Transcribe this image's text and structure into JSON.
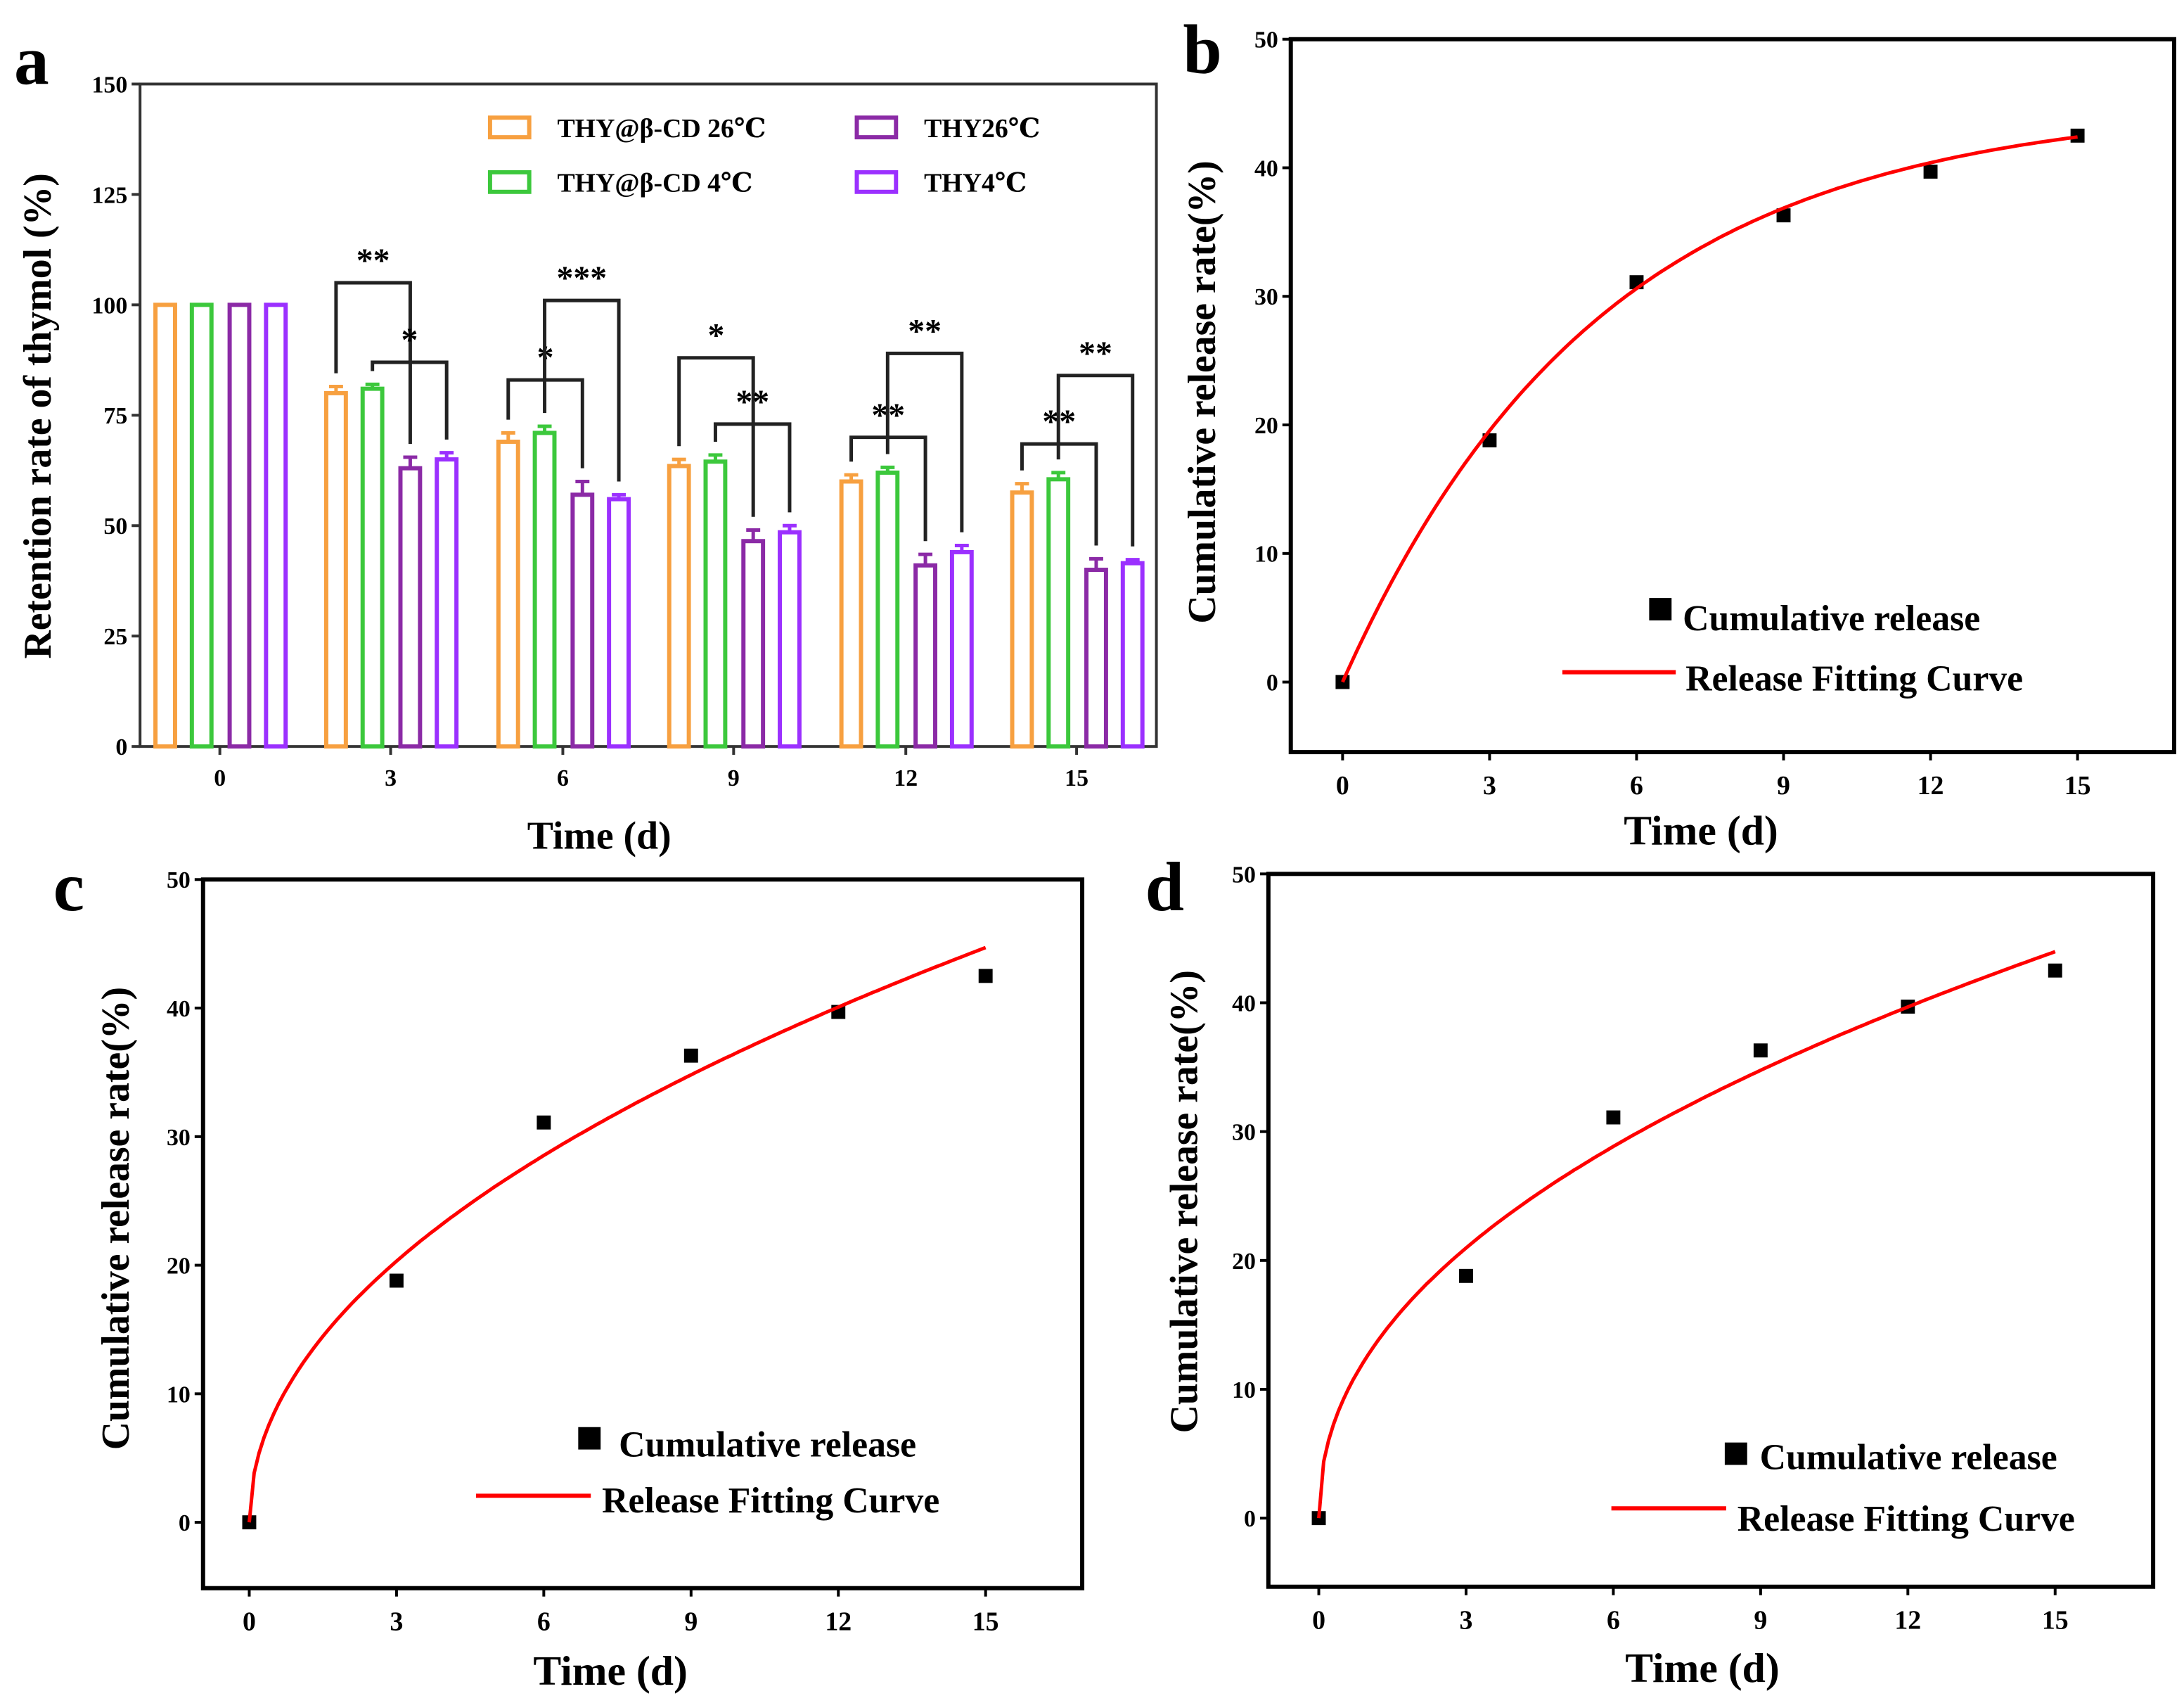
{
  "chart_data": [
    {
      "panel": "a",
      "type": "bar",
      "title": "",
      "xlabel": "Time (d)",
      "ylabel": "Retention rate of thymol (%)",
      "ylim": [
        0,
        150
      ],
      "yticks": [
        "0",
        "25",
        "50",
        "75",
        "100",
        "125",
        "150"
      ],
      "categories": [
        "0",
        "3",
        "6",
        "9",
        "12",
        "15"
      ],
      "legend_placement": "top-right",
      "series": [
        {
          "name": "THY@β-CD 26℃",
          "color": "#f7a040",
          "values": [
            100,
            80,
            69,
            63.5,
            60,
            57.5
          ],
          "errors": [
            0,
            1.5,
            2,
            1.5,
            1.5,
            2
          ]
        },
        {
          "name": "THY@β-CD 4℃",
          "color": "#3cc83c",
          "values": [
            100,
            81,
            71,
            64.5,
            62,
            60.5
          ],
          "errors": [
            0,
            1,
            1.5,
            1.5,
            1.2,
            1.5
          ]
        },
        {
          "name": "THY26℃",
          "color": "#8b2aa6",
          "values": [
            100,
            63,
            57,
            46.5,
            41,
            40
          ],
          "errors": [
            0,
            2.5,
            3,
            2.5,
            2.5,
            2.5
          ]
        },
        {
          "name": "THY4℃",
          "color": "#9b30ff",
          "values": [
            100,
            65,
            56,
            48.5,
            44,
            41.5
          ],
          "errors": [
            0,
            1.5,
            1,
            1.5,
            1.5,
            0.8
          ]
        }
      ],
      "significance": [
        {
          "category": "3",
          "from": 0,
          "to": 2,
          "height": 105,
          "label": "**"
        },
        {
          "category": "3",
          "from": 1,
          "to": 3,
          "height": 87,
          "label": "*"
        },
        {
          "category": "6",
          "from": 0,
          "to": 2,
          "height": 83,
          "label": "*"
        },
        {
          "category": "6",
          "from": 1,
          "to": 3,
          "height": 101,
          "label": "***"
        },
        {
          "category": "9",
          "from": 0,
          "to": 2,
          "height": 88,
          "label": "*"
        },
        {
          "category": "9",
          "from": 1,
          "to": 3,
          "height": 73,
          "label": "**"
        },
        {
          "category": "12",
          "from": 0,
          "to": 2,
          "height": 70,
          "label": "**"
        },
        {
          "category": "12",
          "from": 1,
          "to": 3,
          "height": 89,
          "label": "**"
        },
        {
          "category": "15",
          "from": 0,
          "to": 2,
          "height": 68.5,
          "label": "**"
        },
        {
          "category": "15",
          "from": 1,
          "to": 3,
          "height": 84,
          "label": "**"
        }
      ]
    },
    {
      "panel": "b",
      "type": "scatter",
      "xlabel": "Time (d)",
      "ylabel": "Cumulative release rate(%)",
      "xlim": [
        -1,
        17
      ],
      "ylim": [
        -5,
        50
      ],
      "xticks": [
        "0",
        "3",
        "6",
        "9",
        "12",
        "15"
      ],
      "yticks": [
        "0",
        "10",
        "20",
        "30",
        "40",
        "50"
      ],
      "x": [
        0,
        3,
        6,
        9,
        12,
        15
      ],
      "y": [
        0,
        18.8,
        31.1,
        36.3,
        39.7,
        42.5
      ],
      "fit": {
        "model": "first-order",
        "A": 45,
        "k": 0.19
      },
      "legend": [
        "Cumulative release",
        "Release Fitting Curve"
      ],
      "legend_placement": "bottom-right",
      "fit_color": "#ff0000"
    },
    {
      "panel": "c",
      "type": "scatter",
      "xlabel": "Time (d)",
      "ylabel": "Cumulative release rate(%)",
      "xlim": [
        -1,
        17
      ],
      "ylim": [
        -5,
        50
      ],
      "xticks": [
        "0",
        "3",
        "6",
        "9",
        "12",
        "15"
      ],
      "yticks": [
        "0",
        "10",
        "20",
        "30",
        "40",
        "50"
      ],
      "x": [
        0,
        3,
        6,
        9,
        12,
        15
      ],
      "y": [
        0,
        18.8,
        31.1,
        36.3,
        39.7,
        42.5
      ],
      "fit": {
        "model": "power",
        "k": 11.86,
        "n": 0.49
      },
      "legend": [
        "Cumulative release",
        "Release Fitting Curve"
      ],
      "legend_placement": "bottom-right",
      "fit_color": "#ff0000"
    },
    {
      "panel": "d",
      "type": "scatter",
      "xlabel": "Time (d)",
      "ylabel": "Cumulative release rate(%)",
      "xlim": [
        -1,
        17
      ],
      "ylim": [
        -5,
        50
      ],
      "xticks": [
        "0",
        "3",
        "6",
        "9",
        "12",
        "15"
      ],
      "yticks": [
        "0",
        "10",
        "20",
        "30",
        "40",
        "50"
      ],
      "x": [
        0,
        3,
        6,
        9,
        12,
        15
      ],
      "y": [
        0,
        18.8,
        31.1,
        36.3,
        39.7,
        42.5
      ],
      "fit": {
        "model": "power",
        "k": 12.65,
        "n": 0.46
      },
      "legend": [
        "Cumulative release",
        "Release Fitting Curve"
      ],
      "legend_placement": "bottom-right",
      "fit_color": "#ff0000"
    }
  ]
}
